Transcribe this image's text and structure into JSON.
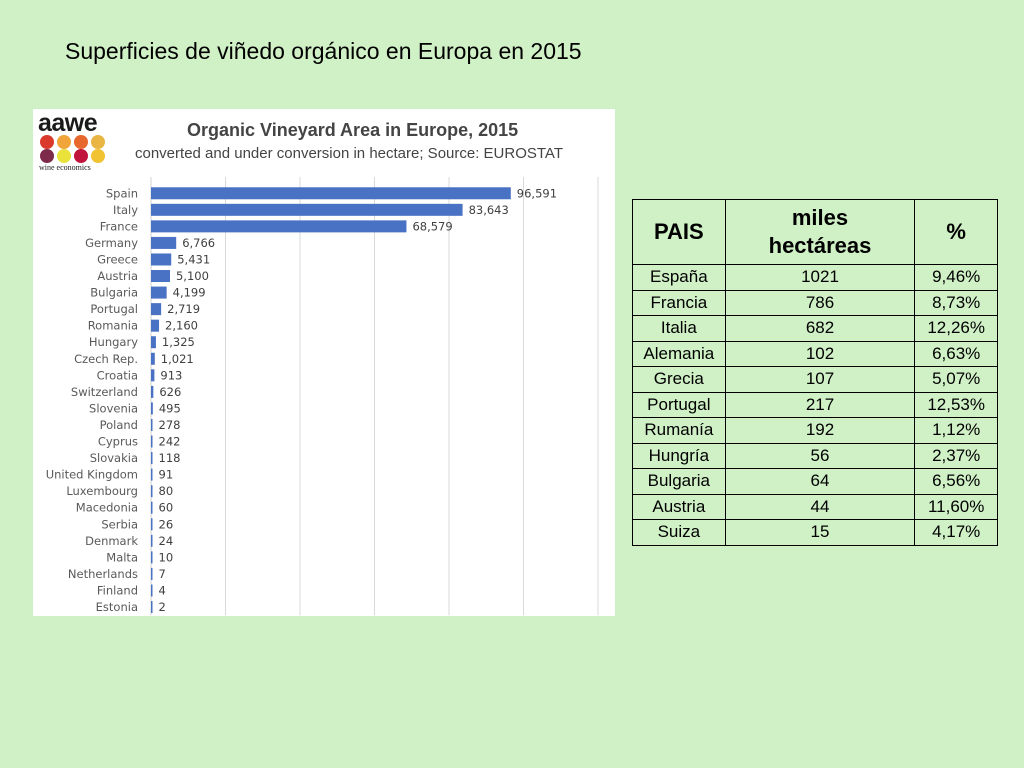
{
  "slide": {
    "title": "Superficies de viñedo orgánico en Europa  en 2015"
  },
  "logo": {
    "name": "aawe",
    "tagline": "wine economics",
    "dot_colors": [
      "#d93a2b",
      "#f0a43a",
      "#e8672c",
      "#e9b544",
      "#7e2a4a",
      "#e8e23a",
      "#c0143c",
      "#f1c232"
    ]
  },
  "chart_data": {
    "type": "bar",
    "orientation": "horizontal",
    "title": "Organic Vineyard Area in Europe, 2015",
    "subtitle": "converted and under conversion in hectare; Source: EUROSTAT",
    "categories": [
      "Spain",
      "Italy",
      "France",
      "Germany",
      "Greece",
      "Austria",
      "Bulgaria",
      "Portugal",
      "Romania",
      "Hungary",
      "Czech Rep.",
      "Croatia",
      "Switzerland",
      "Slovenia",
      "Poland",
      "Cyprus",
      "Slovakia",
      "United Kingdom",
      "Luxembourg",
      "Macedonia",
      "Serbia",
      "Denmark",
      "Malta",
      "Netherlands",
      "Finland",
      "Estonia"
    ],
    "values": [
      96591,
      83643,
      68579,
      6766,
      5431,
      5100,
      4199,
      2719,
      2160,
      1325,
      1021,
      913,
      626,
      495,
      278,
      242,
      118,
      91,
      80,
      60,
      26,
      24,
      10,
      7,
      4,
      2
    ],
    "value_labels": [
      "96,591",
      "83,643",
      "68,579",
      "6,766",
      "5,431",
      "5,100",
      "4,199",
      "2,719",
      "2,160",
      "1,325",
      "1,021",
      "913",
      "626",
      "495",
      "278",
      "242",
      "118",
      "91",
      "80",
      "60",
      "26",
      "24",
      "10",
      "7",
      "4",
      "2"
    ],
    "xlim": [
      0,
      120000
    ],
    "gridlines": true,
    "bar_color": "#4a72c4",
    "grid_color": "#d9d9d9",
    "label_color": "#595959"
  },
  "table": {
    "headers": [
      "PAIS",
      "miles hectáreas",
      "%"
    ],
    "rows": [
      [
        "España",
        "1021",
        "9,46%"
      ],
      [
        "Francia",
        "786",
        "8,73%"
      ],
      [
        "Italia",
        "682",
        "12,26%"
      ],
      [
        "Alemania",
        "102",
        "6,63%"
      ],
      [
        "Grecia",
        "107",
        "5,07%"
      ],
      [
        "Portugal",
        "217",
        "12,53%"
      ],
      [
        "Rumanía",
        "192",
        "1,12%"
      ],
      [
        "Hungría",
        "56",
        "2,37%"
      ],
      [
        "Bulgaria",
        "64",
        "6,56%"
      ],
      [
        "Austria",
        "44",
        "11,60%"
      ],
      [
        "Suiza",
        "15",
        "4,17%"
      ]
    ]
  }
}
